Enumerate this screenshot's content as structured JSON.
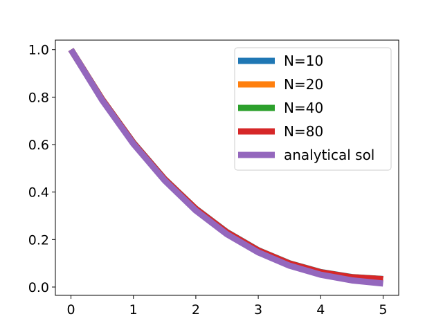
{
  "chart_data": {
    "type": "line",
    "title": "",
    "xlabel": "",
    "ylabel": "",
    "xlim": [
      -0.25,
      5.25
    ],
    "ylim": [
      -0.035,
      1.04
    ],
    "xticks": [
      0,
      1,
      2,
      3,
      4,
      5
    ],
    "xtick_labels": [
      "0",
      "1",
      "2",
      "3",
      "4",
      "5"
    ],
    "yticks": [
      0.0,
      0.2,
      0.4,
      0.6,
      0.8,
      1.0
    ],
    "ytick_labels": [
      "0.0",
      "0.2",
      "0.4",
      "0.6",
      "0.8",
      "1.0"
    ],
    "grid": false,
    "legend": "top-right",
    "x": [
      0,
      0.5,
      1,
      1.5,
      2,
      2.5,
      3,
      3.5,
      4,
      4.5,
      5
    ],
    "series": [
      {
        "name": "N=10",
        "color": "#1f77b4",
        "values": [
          1.0,
          0.79,
          0.608,
          0.455,
          0.33,
          0.231,
          0.155,
          0.1,
          0.063,
          0.042,
          0.034
        ]
      },
      {
        "name": "N=20",
        "color": "#ff7f0e",
        "values": [
          1.0,
          0.79,
          0.607,
          0.454,
          0.329,
          0.23,
          0.154,
          0.099,
          0.062,
          0.041,
          0.033
        ]
      },
      {
        "name": "N=40",
        "color": "#2ca02c",
        "values": [
          1.0,
          0.79,
          0.607,
          0.454,
          0.329,
          0.23,
          0.154,
          0.099,
          0.062,
          0.041,
          0.033
        ]
      },
      {
        "name": "N=80",
        "color": "#d62728",
        "values": [
          1.0,
          0.79,
          0.607,
          0.454,
          0.329,
          0.23,
          0.154,
          0.099,
          0.062,
          0.041,
          0.033
        ]
      },
      {
        "name": "analytical sol",
        "color": "#9467bd",
        "values": [
          1.0,
          0.787,
          0.603,
          0.449,
          0.322,
          0.222,
          0.146,
          0.09,
          0.052,
          0.028,
          0.015
        ]
      }
    ]
  }
}
